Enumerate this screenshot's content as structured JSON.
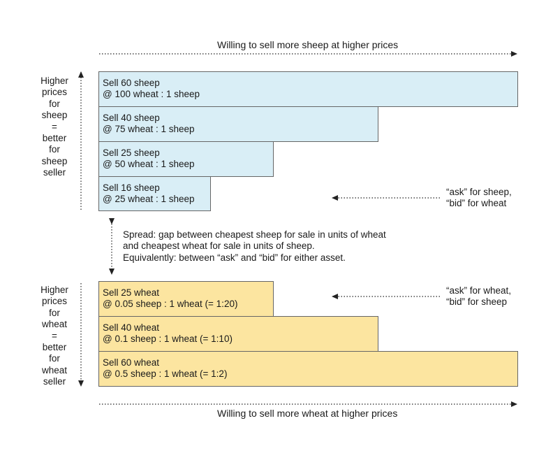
{
  "top_caption": "Willing to sell more sheep at higher prices",
  "bottom_caption": "Willing to sell more wheat at higher prices",
  "sheep_side_label": [
    "Higher",
    "prices",
    "for",
    "sheep",
    "=",
    "better",
    "for",
    "sheep",
    "seller"
  ],
  "wheat_side_label": [
    "Higher",
    "prices",
    "for",
    "wheat",
    "=",
    "better",
    "for",
    "wheat",
    "seller"
  ],
  "sheep_orders": [
    {
      "line1": "Sell 60 sheep",
      "line2": "@ 100 wheat : 1 sheep",
      "quantity": 60,
      "price": 100
    },
    {
      "line1": "Sell 40 sheep",
      "line2": "@ 75 wheat : 1 sheep",
      "quantity": 40,
      "price": 75
    },
    {
      "line1": "Sell 25 sheep",
      "line2": "@ 50 wheat : 1 sheep",
      "quantity": 25,
      "price": 50
    },
    {
      "line1": "Sell 16 sheep",
      "line2": "@ 25 wheat : 1 sheep",
      "quantity": 16,
      "price": 25
    }
  ],
  "wheat_orders": [
    {
      "line1": "Sell 25 wheat",
      "line2": "@ 0.05 sheep : 1 wheat (= 1:20)",
      "quantity": 25,
      "price": 0.05
    },
    {
      "line1": "Sell 40 wheat",
      "line2": "@ 0.1 sheep : 1 wheat (= 1:10)",
      "quantity": 40,
      "price": 0.1
    },
    {
      "line1": "Sell 60 wheat",
      "line2": "@ 0.5 sheep : 1 wheat (= 1:2)",
      "quantity": 60,
      "price": 0.5
    }
  ],
  "ask_sheep_note": [
    "“ask” for sheep,",
    "“bid” for wheat"
  ],
  "ask_wheat_note": [
    "“ask” for wheat,",
    "“bid” for sheep"
  ],
  "spread_note": [
    "Spread: gap between cheapest sheep for sale in units of wheat",
    "and cheapest wheat for sale in units of sheep.",
    "Equivalently: between “ask” and “bid” for either asset."
  ],
  "colors": {
    "sheep_fill": "#d9eef6",
    "wheat_fill": "#fce5a0",
    "border": "#666666",
    "arrow": "#222222"
  }
}
